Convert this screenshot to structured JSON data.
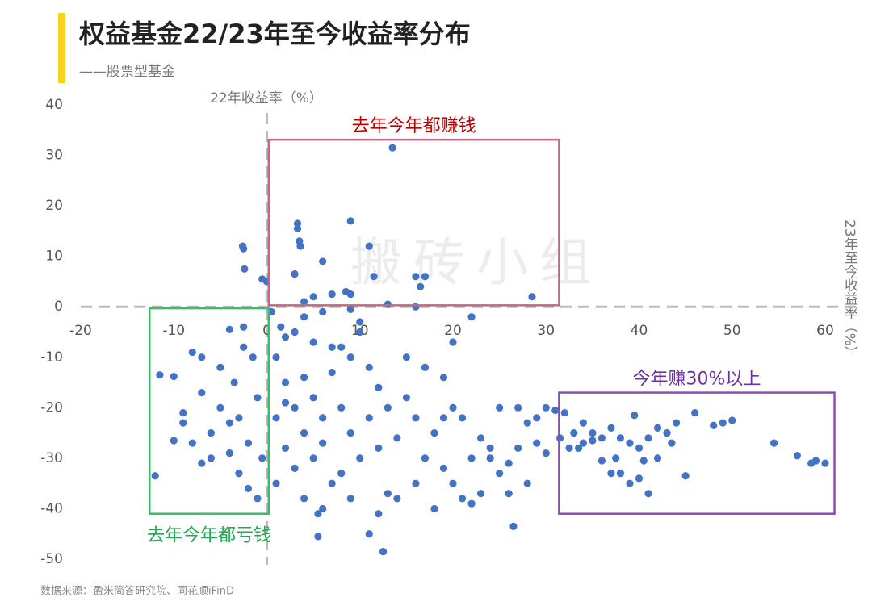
{
  "chart_data": {
    "type": "scatter",
    "title": "权益基金22/23年至今收益率分布",
    "subtitle": "——股票型基金",
    "x_label": "23年至今收益率（%）",
    "y_label": "22年收益率（%）",
    "watermark": "搬砖小组",
    "source": "数据来源：盈米简答研究院、同花顺iFinD",
    "xlim": [
      -20,
      60
    ],
    "xticks": [
      -20,
      -10,
      0,
      10,
      20,
      30,
      40,
      50,
      60
    ],
    "ylim": [
      -50,
      40
    ],
    "yticks": [
      -50,
      -40,
      -30,
      -20,
      -10,
      0,
      10,
      20,
      30,
      40
    ],
    "color": "#4472c4",
    "regions": [
      {
        "label": "去年今年都赚钱",
        "x": [
          0.2,
          31.4
        ],
        "y": [
          0.3,
          33.1
        ],
        "color": "#c9657f",
        "label_color": "#c00000"
      },
      {
        "label": "去年今年都亏钱",
        "x": [
          -12.6,
          0.2
        ],
        "y": [
          -41,
          -0.3
        ],
        "color": "#3dbb6a",
        "label_color": "#1ea84f"
      },
      {
        "label": "今年赚30%以上",
        "x": [
          31.4,
          61
        ],
        "y": [
          -41,
          -17
        ],
        "color": "#8e4bb5",
        "label_color": "#7030a0"
      }
    ],
    "x": [
      13.5,
      9,
      3.3,
      3.3,
      3.5,
      3.6,
      -2.6,
      -2.5,
      11,
      -2.4,
      3,
      6,
      16,
      17,
      16.5,
      11.5,
      28.5,
      -0.5,
      0,
      8.5,
      9,
      5,
      7,
      4,
      16,
      13,
      -11.5,
      -10,
      -8,
      -12,
      -10,
      -9,
      -7,
      -6,
      -5,
      -4,
      -3,
      -2,
      -1,
      -2.5,
      -4,
      -7,
      -3.5,
      -6,
      -8,
      -9,
      -5,
      -3,
      -2,
      -1,
      -1.5,
      -0.5,
      -4,
      -7,
      -2.5,
      1,
      2,
      3,
      4,
      5,
      6,
      2,
      3,
      1,
      5,
      7,
      8,
      9,
      10,
      11,
      12,
      3,
      5,
      1,
      2,
      4,
      6,
      8,
      9,
      10,
      7,
      4,
      6,
      8,
      11,
      12,
      13,
      14,
      15,
      16,
      17,
      18,
      19,
      20,
      21,
      22,
      15,
      17,
      22,
      20,
      19,
      13,
      14,
      16,
      18,
      12,
      9,
      11,
      5.5,
      5.5,
      12.5,
      26.5,
      25,
      27,
      28,
      29,
      30,
      24,
      25,
      26,
      27,
      29,
      30,
      23,
      26,
      28,
      21,
      22,
      24,
      19,
      20,
      23,
      1.5,
      0.5,
      6,
      9,
      4,
      2,
      10,
      7,
      31,
      32,
      31.5,
      33,
      34,
      33.5,
      35,
      36,
      37,
      38,
      39,
      40,
      39.5,
      41,
      42,
      43,
      44,
      45,
      46,
      48,
      49,
      50,
      54.5,
      57,
      58.5,
      60,
      59,
      38,
      39,
      40,
      41,
      37,
      36,
      42,
      32.5,
      34,
      35,
      37.5,
      40.5,
      43.5
    ],
    "values": [
      31.5,
      17,
      16.5,
      15.5,
      13,
      12,
      12,
      11.5,
      12,
      7.5,
      6.5,
      9,
      6,
      6,
      4,
      6,
      2,
      5.5,
      5,
      3,
      2.5,
      2,
      2.5,
      1,
      0,
      0.5,
      -13.5,
      -13.8,
      -9,
      -33.5,
      -26.5,
      -23,
      -17,
      -25,
      -20,
      -29,
      -33,
      -36,
      -38,
      -4,
      -4.5,
      -10,
      -15,
      -30,
      -27,
      -21,
      -12,
      -22,
      -27,
      -18,
      -10,
      -30,
      -23,
      -31,
      -8,
      -10,
      -15,
      -20,
      -25,
      -18,
      -22,
      -28,
      -32,
      -35,
      -30,
      -13,
      -8,
      -10,
      -5,
      -12,
      -16,
      -5,
      -7,
      -22,
      -19,
      -14,
      -27,
      -20,
      -25,
      -30,
      -35,
      -38,
      -40,
      -33,
      -22,
      -28,
      -20,
      -26,
      -18,
      -22,
      -30,
      -25,
      -32,
      -35,
      -22,
      -30,
      -10,
      -12,
      -2,
      -7,
      -14,
      -37,
      -38,
      -35,
      -40,
      -41,
      -38,
      -45,
      -41,
      -45.5,
      -48.5,
      -43.5,
      -20,
      -20,
      -23,
      -22,
      -20,
      -30,
      -33,
      -31,
      -28,
      -27,
      -29,
      -37,
      -37,
      -35,
      -38,
      -39,
      -28,
      -22,
      -20,
      -26,
      -4,
      -1,
      -1,
      -0.5,
      -2,
      -6,
      -3,
      -8,
      -20.5,
      -21,
      -26,
      -25,
      -23,
      -28,
      -25,
      -30.5,
      -24,
      -26,
      -27,
      -28,
      -21.5,
      -26,
      -30,
      -25,
      -23,
      -33.5,
      -21,
      -23.5,
      -23,
      -22.5,
      -27,
      -29.5,
      -31,
      -31,
      -30.5,
      -33,
      -35,
      -34,
      -37,
      -33,
      -26,
      -24,
      -28,
      -27,
      -26.5,
      -30,
      -30.5,
      -27
    ]
  }
}
